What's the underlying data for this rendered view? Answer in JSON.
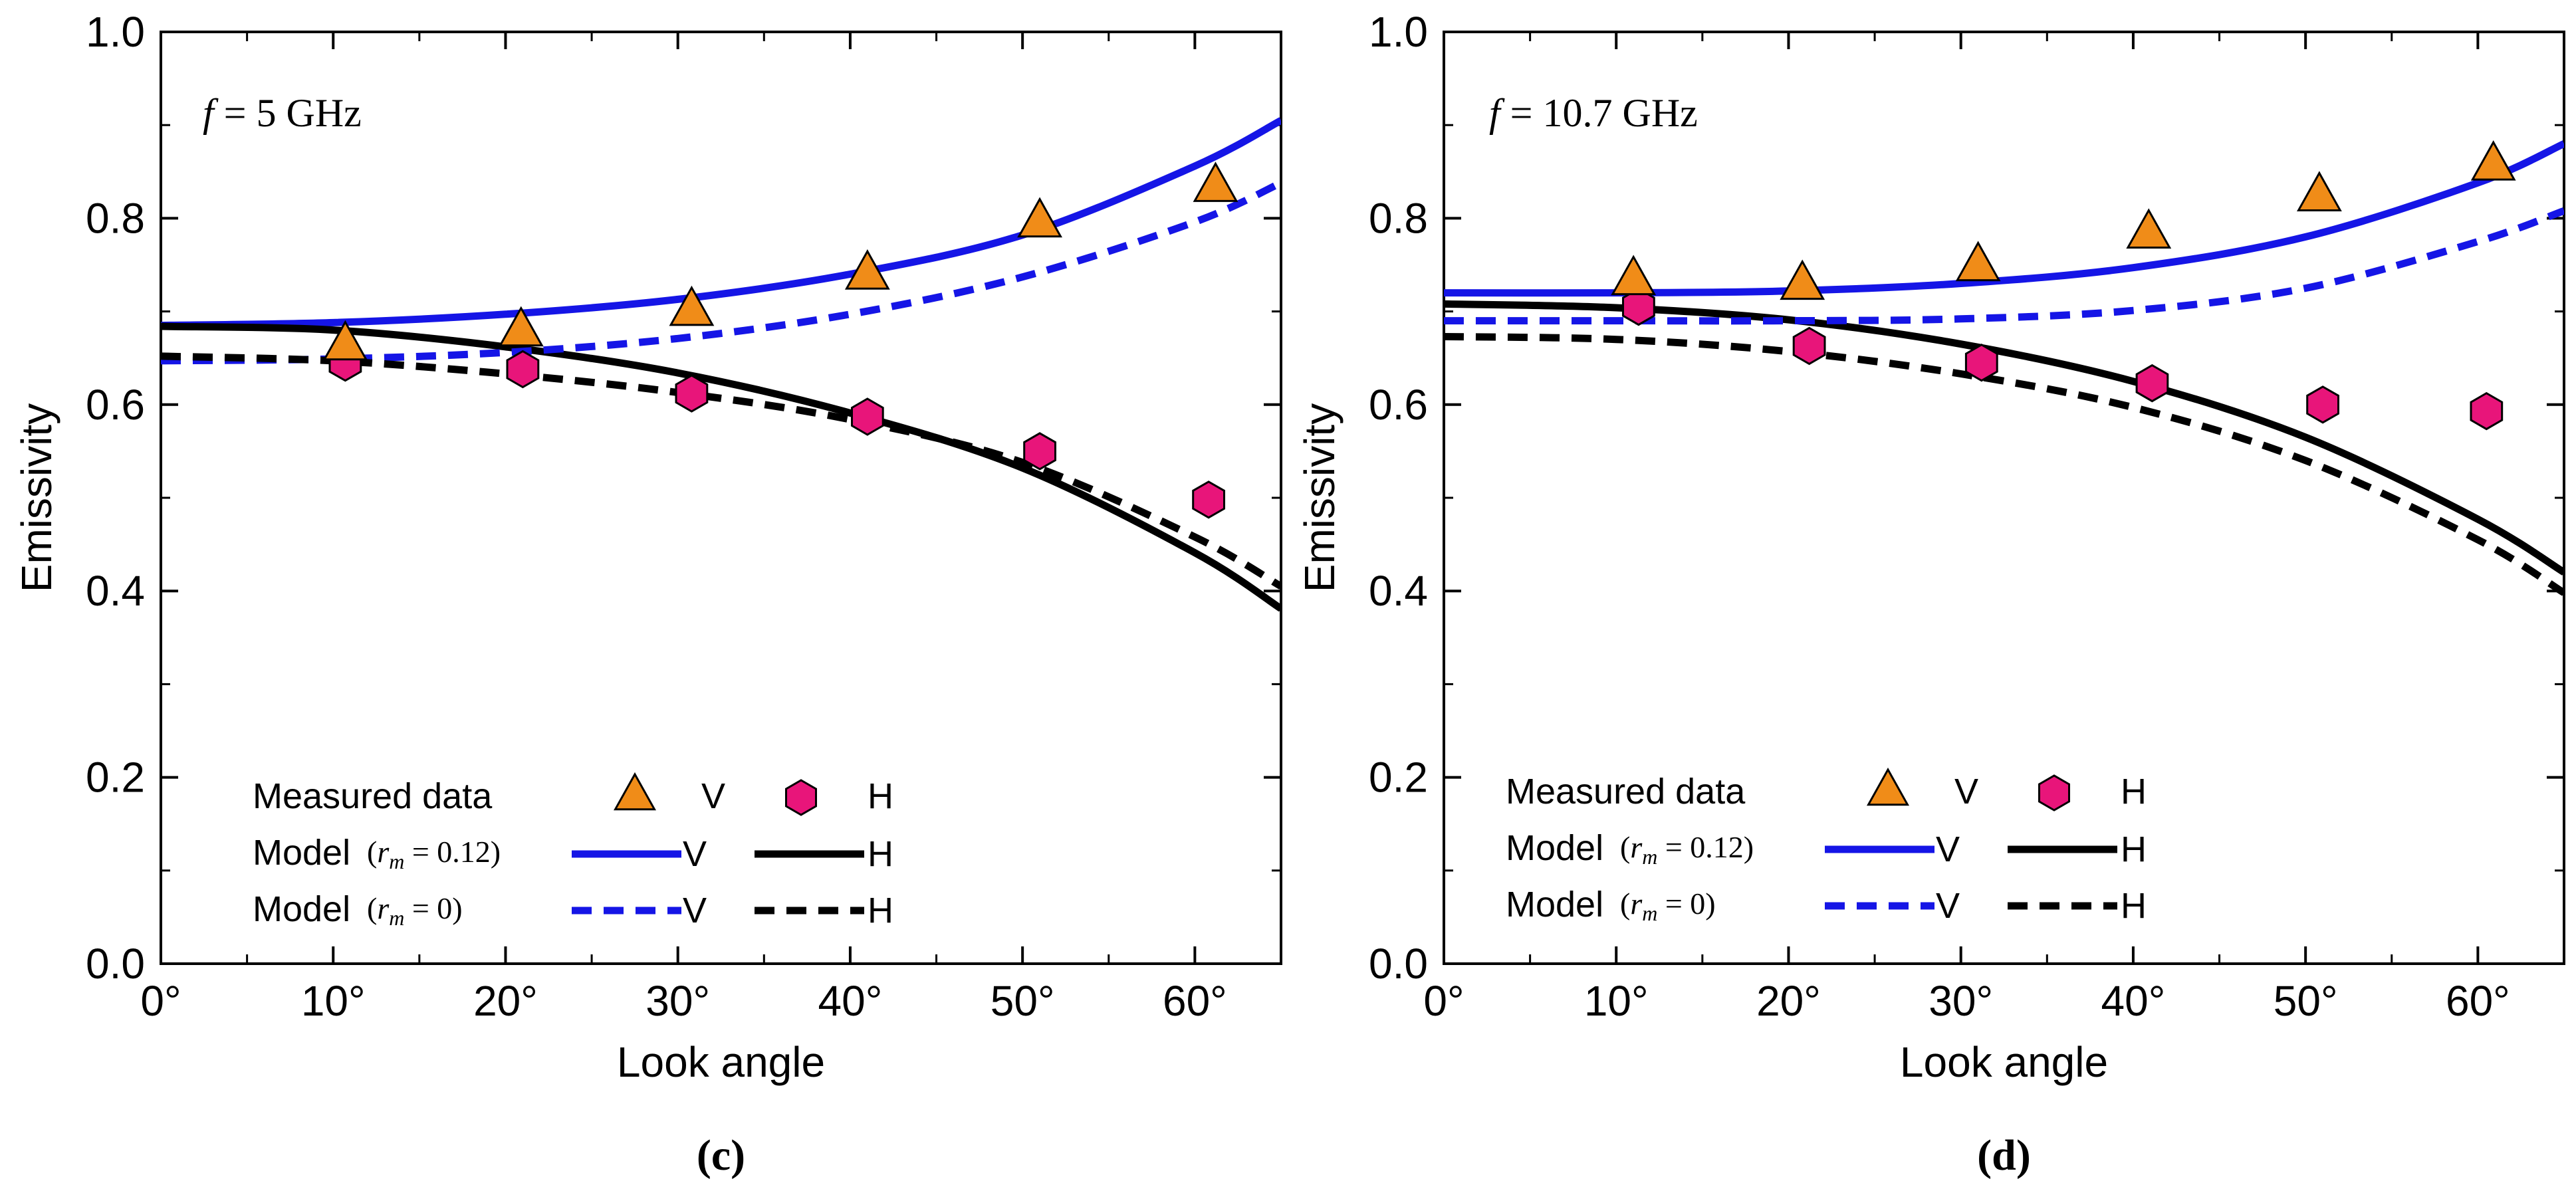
{
  "chart_data": [
    {
      "type": "line",
      "panel_label": "(c)",
      "frequency_text": "f = 5 GHz",
      "xlabel": "Look angle",
      "ylabel": "Emissivity",
      "xlim": [
        0,
        65
      ],
      "ylim": [
        0.0,
        1.0
      ],
      "x_ticks": [
        0,
        10,
        20,
        30,
        40,
        50,
        60
      ],
      "x_tick_labels": [
        "0°",
        "10°",
        "20°",
        "30°",
        "40°",
        "50°",
        "60°"
      ],
      "y_ticks": [
        0.0,
        0.2,
        0.4,
        0.6,
        0.8,
        1.0
      ],
      "y_tick_labels": [
        "0.0",
        "0.2",
        "0.4",
        "0.6",
        "0.8",
        "1.0"
      ],
      "measured": {
        "V": {
          "x": [
            10.7,
            20.9,
            30.8,
            41.0,
            51.0,
            61.2
          ],
          "y": [
            0.665,
            0.68,
            0.702,
            0.741,
            0.797,
            0.835
          ]
        },
        "H": {
          "x": [
            10.7,
            21.0,
            30.8,
            41.0,
            51.0,
            60.8
          ],
          "y": [
            0.645,
            0.638,
            0.612,
            0.587,
            0.55,
            0.498
          ]
        }
      },
      "models": [
        {
          "name": "Model (r_m = 0.12) V",
          "pol": "V",
          "color": "#1515e6",
          "style": "solid",
          "x": [
            0,
            10,
            20,
            30,
            40,
            50,
            60,
            65
          ],
          "y": [
            0.685,
            0.688,
            0.697,
            0.713,
            0.74,
            0.782,
            0.856,
            0.905
          ]
        },
        {
          "name": "Model (r_m = 0.12) H",
          "pol": "H",
          "color": "#000000",
          "style": "solid",
          "x": [
            0,
            10,
            20,
            30,
            40,
            50,
            60,
            65
          ],
          "y": [
            0.684,
            0.68,
            0.662,
            0.634,
            0.591,
            0.532,
            0.441,
            0.381
          ]
        },
        {
          "name": "Model (r_m = 0) V",
          "pol": "V",
          "color": "#1515e6",
          "style": "dashed",
          "x": [
            0,
            10,
            20,
            30,
            40,
            50,
            60,
            65
          ],
          "y": [
            0.647,
            0.649,
            0.656,
            0.671,
            0.697,
            0.737,
            0.796,
            0.838
          ]
        },
        {
          "name": "Model (r_m = 0) H",
          "pol": "H",
          "color": "#000000",
          "style": "dashed",
          "x": [
            0,
            10,
            20,
            30,
            40,
            50,
            60,
            65
          ],
          "y": [
            0.652,
            0.647,
            0.633,
            0.613,
            0.584,
            0.538,
            0.458,
            0.405
          ]
        }
      ],
      "legend": {
        "placement": "bottom-left",
        "measured_label": "Measured data",
        "model1_label": "Model",
        "model1_param": "(r_m = 0.12)",
        "model2_label": "Model",
        "model2_param": "(r_m = 0)",
        "v_label": "V",
        "h_label": "H"
      }
    },
    {
      "type": "line",
      "panel_label": "(d)",
      "frequency_text": "f = 10.7 GHz",
      "xlabel": "Look angle",
      "ylabel": "Emissivity",
      "xlim": [
        0,
        65
      ],
      "ylim": [
        0.0,
        1.0
      ],
      "x_ticks": [
        0,
        10,
        20,
        30,
        40,
        50,
        60
      ],
      "x_tick_labels": [
        "0°",
        "10°",
        "20°",
        "30°",
        "40°",
        "50°",
        "60°"
      ],
      "y_ticks": [
        0.0,
        0.2,
        0.4,
        0.6,
        0.8,
        1.0
      ],
      "y_tick_labels": [
        "0.0",
        "0.2",
        "0.4",
        "0.6",
        "0.8",
        "1.0"
      ],
      "measured": {
        "V": {
          "x": [
            11.0,
            20.8,
            31.0,
            40.9,
            50.8,
            60.9
          ],
          "y": [
            0.735,
            0.73,
            0.75,
            0.785,
            0.825,
            0.858
          ]
        },
        "H": {
          "x": [
            11.3,
            21.2,
            31.2,
            41.1,
            51.0,
            60.5
          ],
          "y": [
            0.705,
            0.663,
            0.645,
            0.623,
            0.6,
            0.593
          ]
        }
      },
      "models": [
        {
          "name": "Model (r_m = 0.12) V",
          "pol": "V",
          "color": "#1515e6",
          "style": "solid",
          "x": [
            0,
            10,
            20,
            30,
            40,
            50,
            60,
            65
          ],
          "y": [
            0.72,
            0.72,
            0.722,
            0.73,
            0.747,
            0.78,
            0.838,
            0.88
          ]
        },
        {
          "name": "Model (r_m = 0.12) H",
          "pol": "H",
          "color": "#000000",
          "style": "solid",
          "x": [
            0,
            10,
            20,
            30,
            40,
            50,
            60,
            65
          ],
          "y": [
            0.708,
            0.704,
            0.691,
            0.665,
            0.625,
            0.565,
            0.477,
            0.42
          ]
        },
        {
          "name": "Model (r_m = 0) V",
          "pol": "V",
          "color": "#1515e6",
          "style": "dashed",
          "x": [
            0,
            10,
            20,
            30,
            40,
            50,
            60,
            65
          ],
          "y": [
            0.69,
            0.69,
            0.69,
            0.692,
            0.701,
            0.725,
            0.775,
            0.808
          ]
        },
        {
          "name": "Model (r_m = 0) H",
          "pol": "H",
          "color": "#000000",
          "style": "dashed",
          "x": [
            0,
            10,
            20,
            30,
            40,
            50,
            60,
            65
          ],
          "y": [
            0.673,
            0.67,
            0.657,
            0.633,
            0.597,
            0.54,
            0.455,
            0.398
          ]
        }
      ],
      "legend": {
        "placement": "bottom-left",
        "measured_label": "Measured data",
        "model1_label": "Model",
        "model1_param": "(r_m = 0.12)",
        "model2_label": "Model",
        "model2_param": "(r_m = 0)",
        "v_label": "V",
        "h_label": "H"
      }
    }
  ],
  "colors": {
    "v_marker_fill": "#f08c18",
    "h_marker_fill": "#e8157a",
    "marker_edge": "#000000",
    "v_line": "#1515e6",
    "h_line": "#000000",
    "axis": "#000000"
  }
}
